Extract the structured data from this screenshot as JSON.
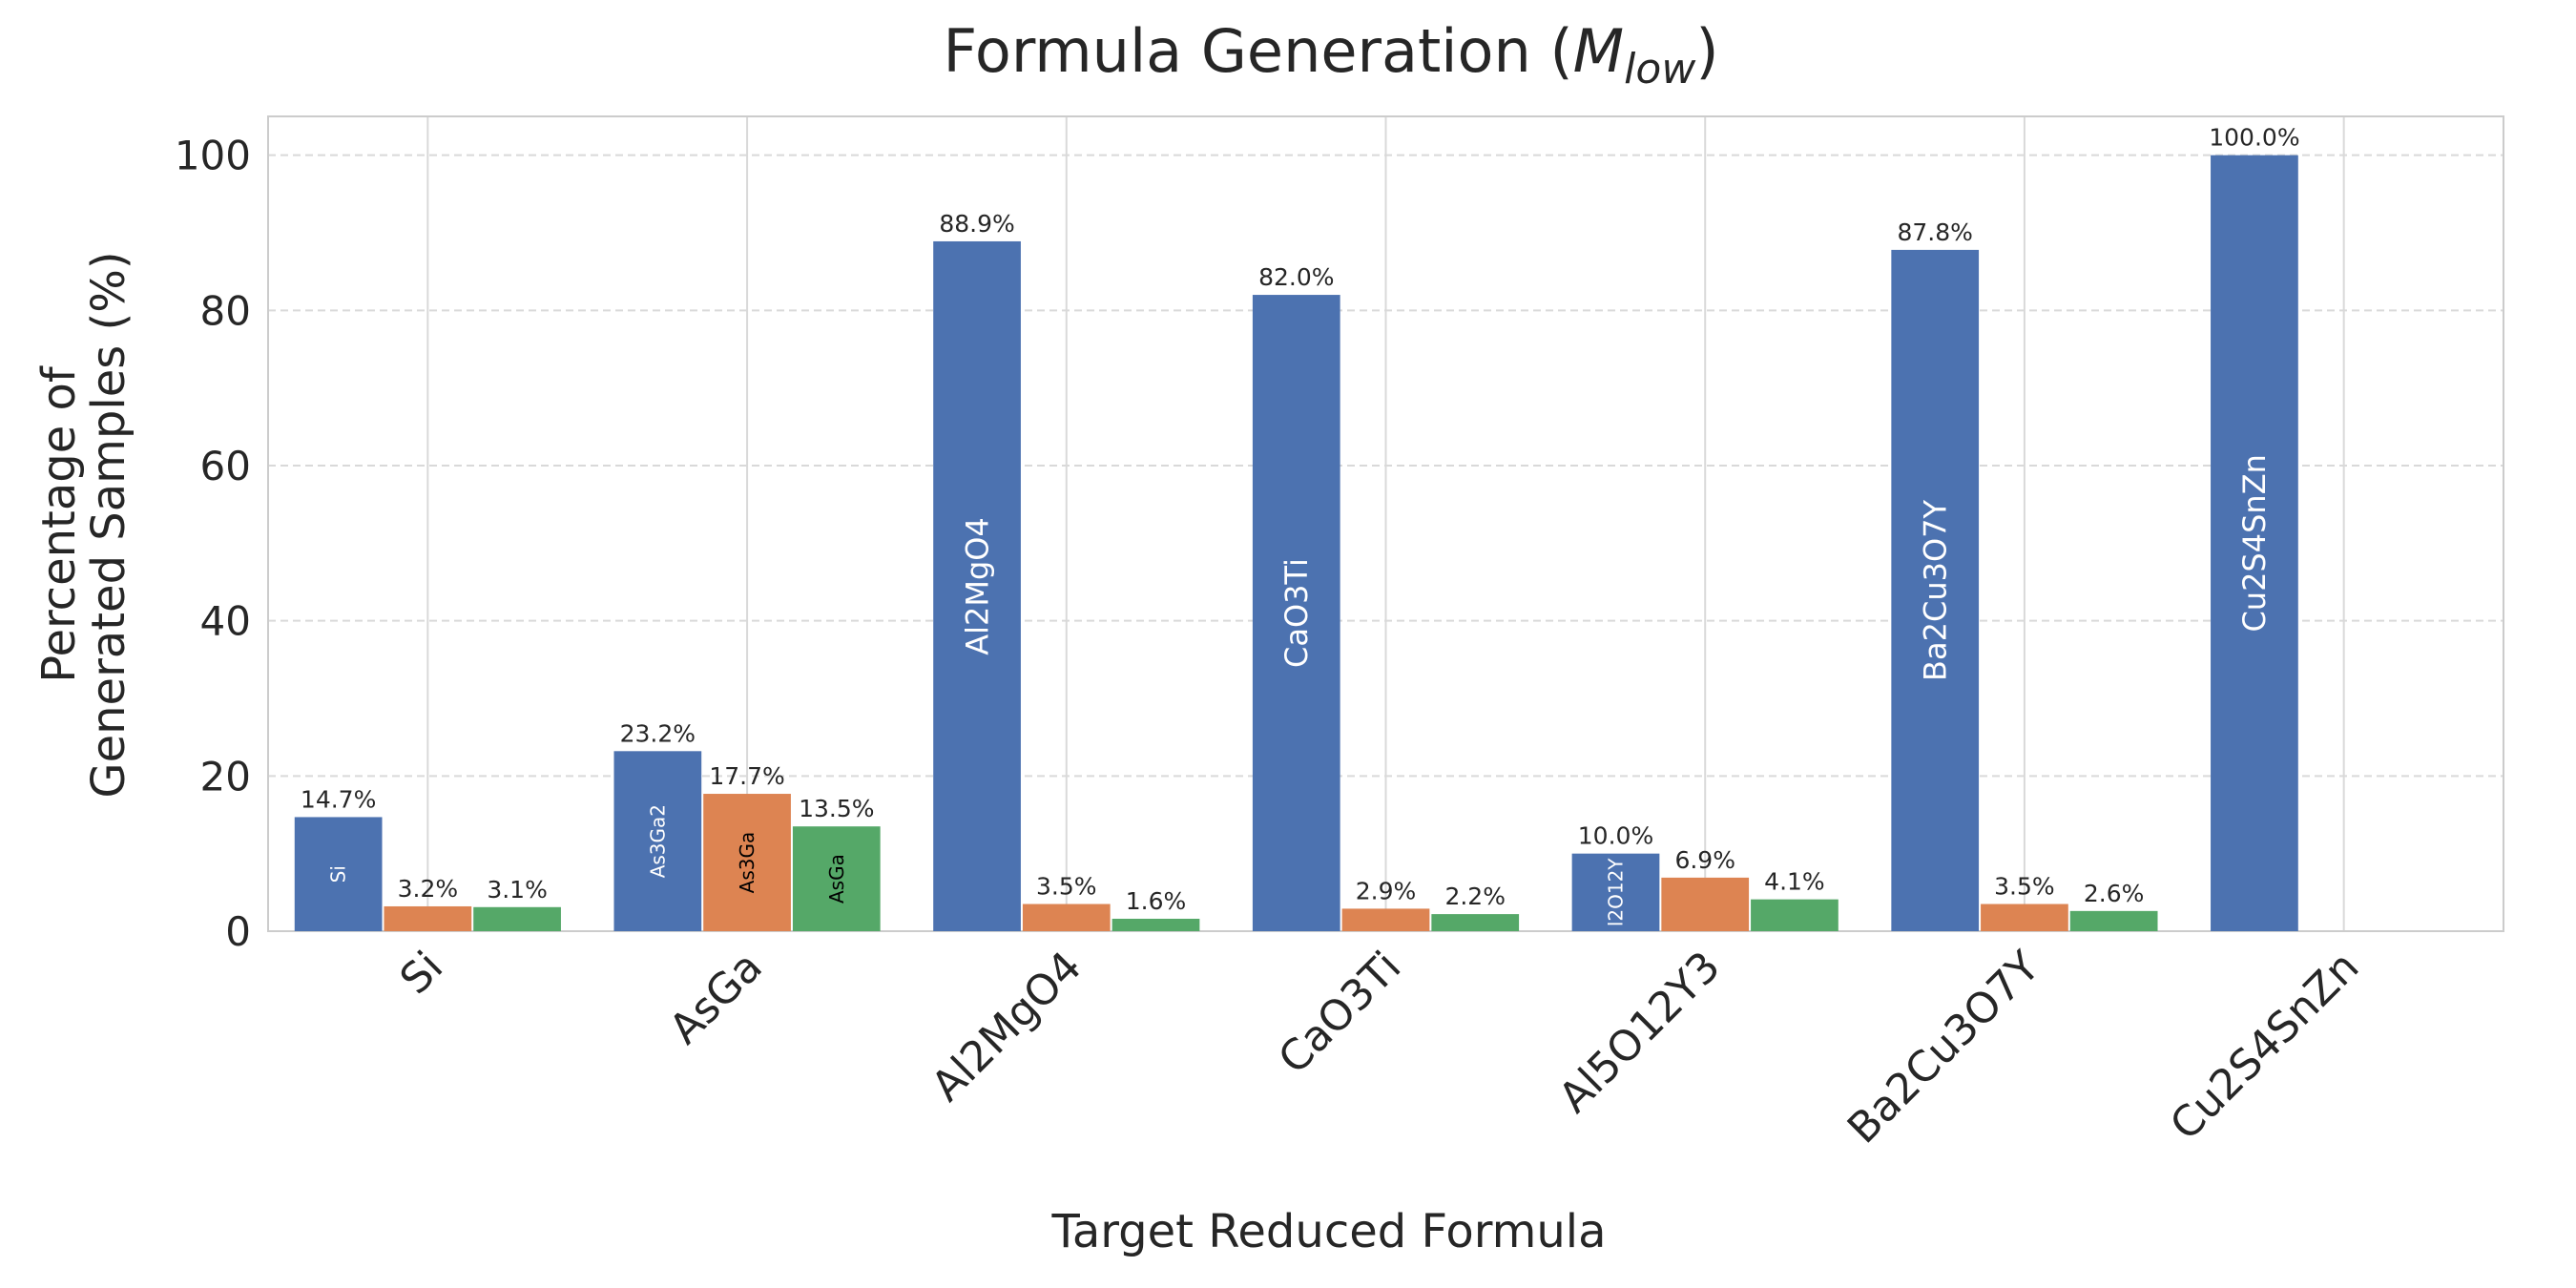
{
  "chart_data": {
    "type": "bar",
    "title": [
      "Formula Generation (",
      "M",
      "low",
      ")"
    ],
    "xlabel": "Target Reduced Formula",
    "ylabel": [
      "Percentage of",
      "Generated Samples (%)"
    ],
    "categories": [
      "Si",
      "AsGa",
      "Al2MgO4",
      "CaO3Ti",
      "Al5O12Y3",
      "Ba2Cu3O7Y",
      "Cu2S4SnZn"
    ],
    "series": [
      {
        "color": "#4c72b0",
        "label_color": "#ffffff",
        "values": [
          14.7,
          23.2,
          88.9,
          82.0,
          10.0,
          87.8,
          100.0
        ],
        "value_labels": [
          "14.7%",
          "23.2%",
          "88.9%",
          "82.0%",
          "10.0%",
          "87.8%",
          "100.0%"
        ],
        "bar_labels": [
          "Si",
          "As3Ga2",
          "Al2MgO4",
          "CaO3Ti",
          "l2O12Y",
          "Ba2Cu3O7Y",
          "Cu2S4SnZn"
        ]
      },
      {
        "color": "#dd8452",
        "label_color": "#000000",
        "values": [
          3.2,
          17.7,
          3.5,
          2.9,
          6.9,
          3.5,
          null
        ],
        "value_labels": [
          "3.2%",
          "17.7%",
          "3.5%",
          "2.9%",
          "6.9%",
          "3.5%",
          null
        ],
        "bar_labels": [
          null,
          "As3Ga",
          null,
          null,
          null,
          null,
          null
        ]
      },
      {
        "color": "#55a868",
        "label_color": "#000000",
        "values": [
          3.1,
          13.5,
          1.6,
          2.2,
          4.1,
          2.6,
          null
        ],
        "value_labels": [
          "3.1%",
          "13.5%",
          "1.6%",
          "2.2%",
          "4.1%",
          "2.6%",
          null
        ],
        "bar_labels": [
          null,
          "AsGa",
          null,
          null,
          null,
          null,
          null
        ]
      }
    ],
    "ylim": [
      0,
      105
    ],
    "yticks": [
      0,
      20,
      40,
      60,
      80,
      100
    ],
    "grid": true
  }
}
